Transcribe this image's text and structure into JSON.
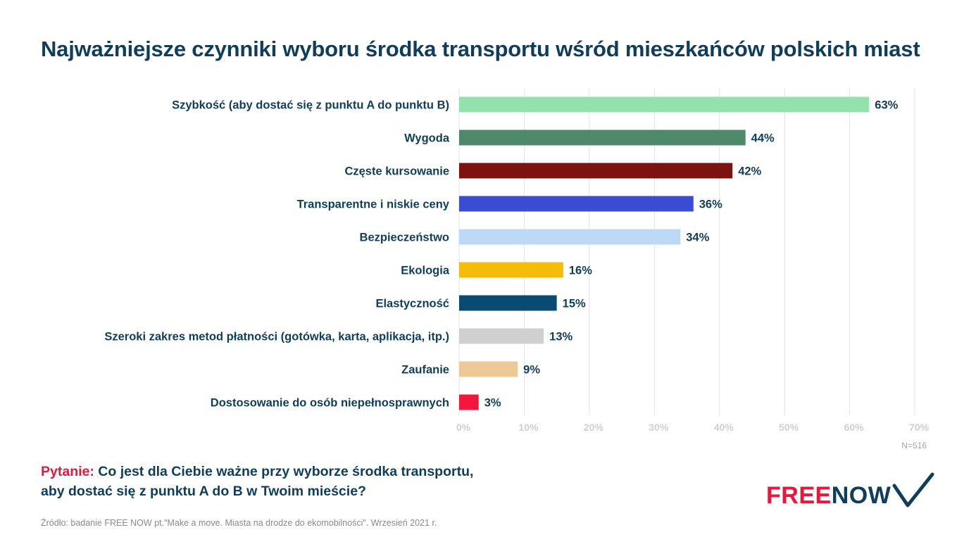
{
  "title": "Najważniejsze czynniki wyboru środka transportu wśród mieszkańców polskich miast",
  "sample_note": "N=516",
  "question": {
    "prefix": "Pytanie:",
    "line1": " Co jest dla Ciebie ważne przy wyborze środka transportu,",
    "line2": "aby dostać się z punktu A do B w Twoim mieście?"
  },
  "source": "Źródło: badanie FREE NOW pt.\"Make a move. Miasta na drodze do ekomobilności\". Wrzesień 2021 r.",
  "logo": {
    "part1": "FREE",
    "part2": "NOW",
    "icon": "chevron-v-icon"
  },
  "colors": {
    "title": "#0f3d5c",
    "accent_red": "#e8173b",
    "grid": "#e3e3e3"
  },
  "chart_data": {
    "type": "bar",
    "orientation": "horizontal",
    "categories": [
      "Szybkość (aby dostać się z punktu A do punktu B)",
      "Wygoda",
      "Częste kursowanie",
      "Transparentne i niskie ceny",
      "Bezpieczeństwo",
      "Ekologia",
      "Elastyczność",
      "Szeroki zakres metod płatności (gotówka, karta, aplikacja, itp.)",
      "Zaufanie",
      "Dostosowanie do osób niepełnosprawnych"
    ],
    "values": [
      63,
      44,
      42,
      36,
      34,
      16,
      15,
      13,
      9,
      3
    ],
    "value_labels": [
      "63%",
      "44%",
      "42%",
      "36%",
      "34%",
      "16%",
      "15%",
      "13%",
      "9%",
      "3%"
    ],
    "bar_colors": [
      "#94e2ab",
      "#4d8a6a",
      "#7d130f",
      "#3a4bd4",
      "#bcd9f5",
      "#f5bd0a",
      "#0b4a73",
      "#d0d0d0",
      "#efc897",
      "#f5173b"
    ],
    "xlim": [
      0,
      70
    ],
    "x_ticks": [
      0,
      10,
      20,
      30,
      40,
      50,
      60,
      70
    ],
    "x_tick_labels": [
      "0%",
      "10%",
      "20%",
      "30%",
      "40%",
      "50%",
      "60%",
      "70%"
    ],
    "grid": true
  }
}
